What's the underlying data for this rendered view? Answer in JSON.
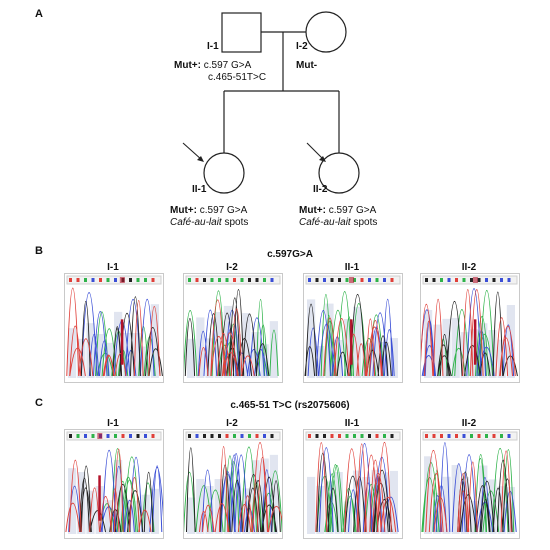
{
  "panel_a": {
    "label": "A",
    "I1": {
      "id": "I-1",
      "status": "Mut+:",
      "variant1": "c.597 G>A",
      "variant2": "c.465-51T>C"
    },
    "I2": {
      "id": "I-2",
      "status": "Mut-"
    },
    "II1": {
      "id": "II-1",
      "status": "Mut+:",
      "variant": "c.597 G>A",
      "phenotype_italic": "Café-au-lait",
      "phenotype_rest": " spots"
    },
    "II2": {
      "id": "II-2",
      "status": "Mut+:",
      "variant": "c.597 G>A",
      "phenotype_italic": "Café-au-lait",
      "phenotype_rest": " spots"
    }
  },
  "panel_b": {
    "label": "B",
    "title": "c.597G>A",
    "traces": [
      {
        "id": "I-1",
        "marker": true,
        "marker_pos": 0.58
      },
      {
        "id": "I-2",
        "marker": false
      },
      {
        "id": "II-1",
        "marker": true,
        "marker_pos": 0.48
      },
      {
        "id": "II-2",
        "marker": true,
        "marker_pos": 0.55
      }
    ]
  },
  "panel_c": {
    "label": "C",
    "title": "c.465-51 T>C (rs2075606)",
    "traces": [
      {
        "id": "I-1",
        "marker": true,
        "marker_pos": 0.35
      },
      {
        "id": "I-2",
        "marker": false
      },
      {
        "id": "II-1",
        "marker": false
      },
      {
        "id": "II-2",
        "marker": false
      }
    ]
  },
  "colors": {
    "A": "#2fb34a",
    "C": "#3b4fd6",
    "G": "#222222",
    "T": "#e0403a",
    "marker": "#b3122a",
    "bg_block": "#d4daea"
  }
}
